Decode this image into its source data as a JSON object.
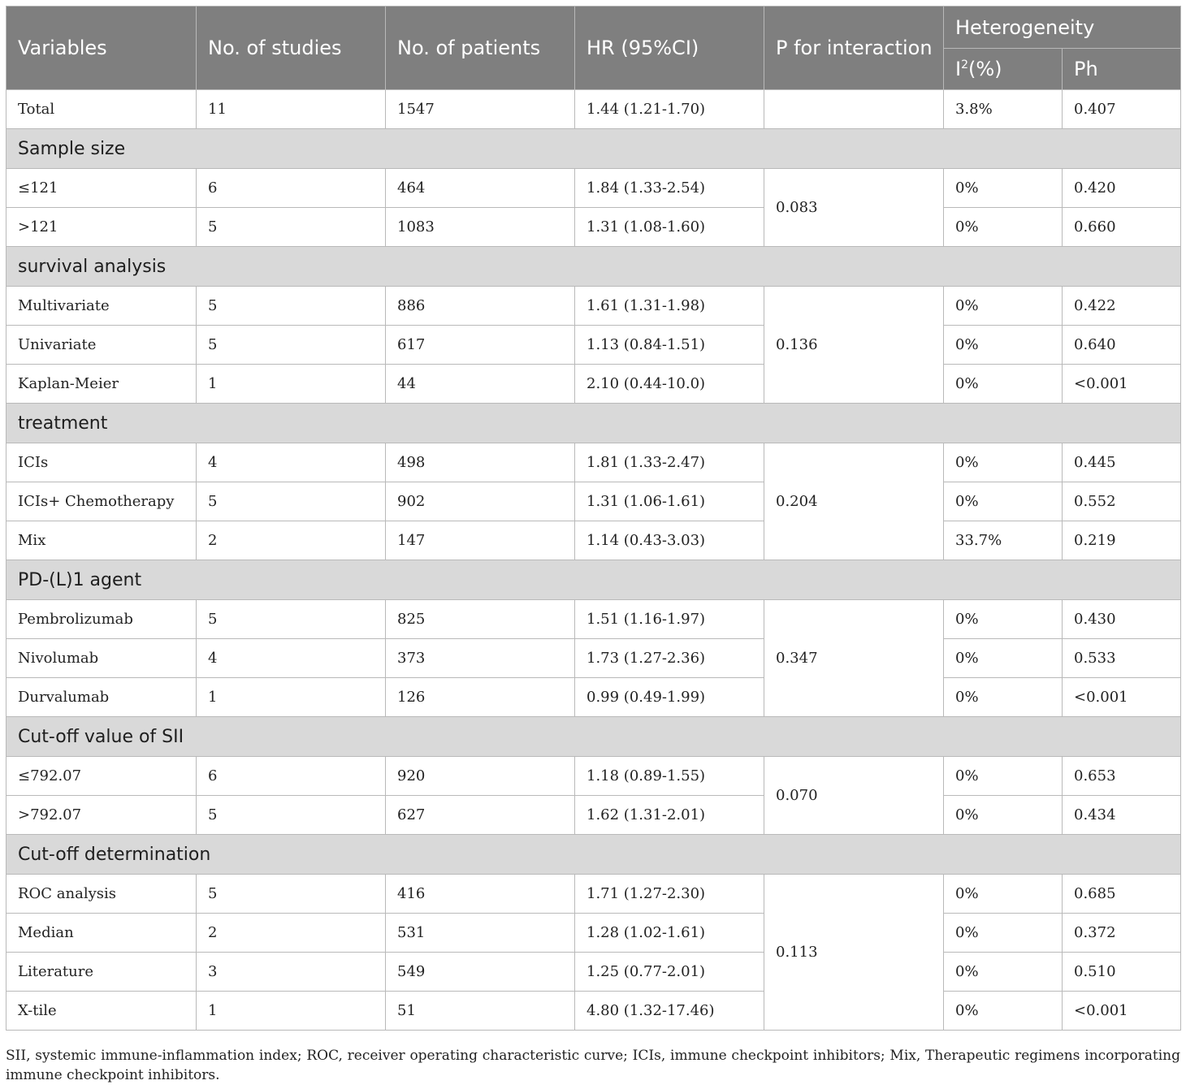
{
  "header": {
    "variables": "Variables",
    "num_studies": "No. of studies",
    "num_patients": "No. of patients",
    "hr": "HR (95%CI)",
    "p_interaction": "P for interaction",
    "heterogeneity": "Heterogeneity",
    "i2_base": "I",
    "i2_sup": "2",
    "i2_suffix": "(%)",
    "ph": "Ph"
  },
  "total": {
    "label": "Total",
    "studies": "11",
    "patients": "1547",
    "hr": "1.44 (1.21-1.70)",
    "p": "",
    "i2": "3.8%",
    "ph": "0.407"
  },
  "groups": [
    {
      "title": "Sample size",
      "p": "0.083",
      "rows": [
        {
          "label": "≤121",
          "studies": "6",
          "patients": "464",
          "hr": "1.84 (1.33-2.54)",
          "i2": "0%",
          "ph": "0.420"
        },
        {
          "label": ">121",
          "studies": "5",
          "patients": "1083",
          "hr": "1.31 (1.08-1.60)",
          "i2": "0%",
          "ph": "0.660"
        }
      ]
    },
    {
      "title": "survival analysis",
      "p": "0.136",
      "rows": [
        {
          "label": "Multivariate",
          "studies": "5",
          "patients": "886",
          "hr": "1.61 (1.31-1.98)",
          "i2": "0%",
          "ph": "0.422"
        },
        {
          "label": "Univariate",
          "studies": "5",
          "patients": "617",
          "hr": "1.13 (0.84-1.51)",
          "i2": "0%",
          "ph": "0.640"
        },
        {
          "label": "Kaplan-Meier",
          "studies": "1",
          "patients": "44",
          "hr": "2.10 (0.44-10.0)",
          "i2": "0%",
          "ph": "<0.001"
        }
      ]
    },
    {
      "title": "treatment",
      "p": "0.204",
      "rows": [
        {
          "label": "ICIs",
          "studies": "4",
          "patients": "498",
          "hr": "1.81 (1.33-2.47)",
          "i2": "0%",
          "ph": "0.445"
        },
        {
          "label": "ICIs+ Chemotherapy",
          "studies": "5",
          "patients": "902",
          "hr": "1.31 (1.06-1.61)",
          "i2": "0%",
          "ph": "0.552"
        },
        {
          "label": "Mix",
          "studies": "2",
          "patients": "147",
          "hr": "1.14 (0.43-3.03)",
          "i2": "33.7%",
          "ph": "0.219"
        }
      ]
    },
    {
      "title": "PD-(L)1 agent",
      "p": "0.347",
      "rows": [
        {
          "label": "Pembrolizumab",
          "studies": "5",
          "patients": "825",
          "hr": "1.51 (1.16-1.97)",
          "i2": "0%",
          "ph": "0.430"
        },
        {
          "label": "Nivolumab",
          "studies": "4",
          "patients": "373",
          "hr": "1.73 (1.27-2.36)",
          "i2": "0%",
          "ph": "0.533"
        },
        {
          "label": "Durvalumab",
          "studies": "1",
          "patients": "126",
          "hr": "0.99 (0.49-1.99)",
          "i2": "0%",
          "ph": "<0.001"
        }
      ]
    },
    {
      "title": "Cut-off value of SII",
      "p": "0.070",
      "rows": [
        {
          "label": "≤792.07",
          "studies": "6",
          "patients": "920",
          "hr": "1.18 (0.89-1.55)",
          "i2": "0%",
          "ph": "0.653"
        },
        {
          "label": ">792.07",
          "studies": "5",
          "patients": "627",
          "hr": "1.62 (1.31-2.01)",
          "i2": "0%",
          "ph": "0.434"
        }
      ]
    },
    {
      "title": "Cut-off determination",
      "p": "0.113",
      "rows": [
        {
          "label": "ROC analysis",
          "studies": "5",
          "patients": "416",
          "hr": "1.71 (1.27-2.30)",
          "i2": "0%",
          "ph": "0.685"
        },
        {
          "label": "Median",
          "studies": "2",
          "patients": "531",
          "hr": "1.28 (1.02-1.61)",
          "i2": "0%",
          "ph": "0.372"
        },
        {
          "label": "Literature",
          "studies": "3",
          "patients": "549",
          "hr": "1.25 (0.77-2.01)",
          "i2": "0%",
          "ph": "0.510"
        },
        {
          "label": "X-tile",
          "studies": "1",
          "patients": "51",
          "hr": "4.80 (1.32-17.46)",
          "i2": "0%",
          "ph": "<0.001"
        }
      ]
    }
  ],
  "footnote": "SII, systemic immune-inflammation index; ROC, receiver operating characteristic curve; ICIs, immune checkpoint inhibitors; Mix, Therapeutic regimens incorporating immune checkpoint inhibitors.",
  "colors": {
    "header_bg": "#7f7f7f",
    "group_bg": "#d9d9d9",
    "border": "#b9b9b9"
  }
}
